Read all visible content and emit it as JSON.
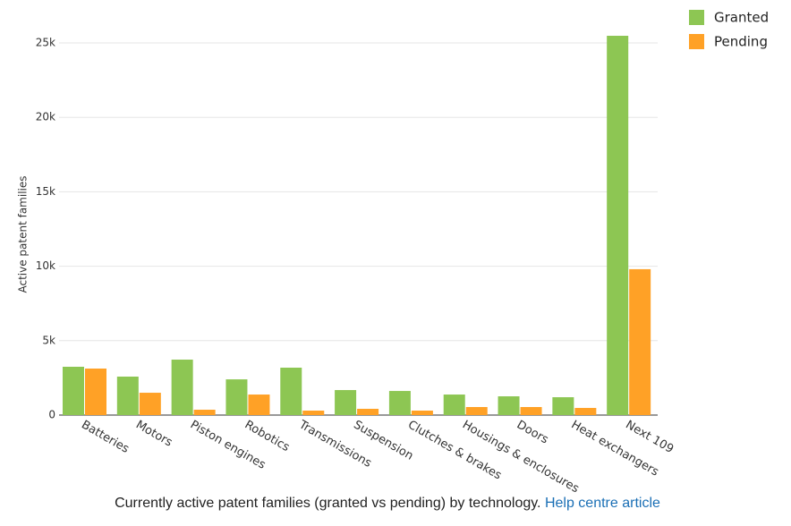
{
  "chart_data": {
    "type": "bar",
    "y_label": "Active patent families",
    "categories": [
      "Batteries",
      "Motors",
      "Piston engines",
      "Robotics",
      "Transmissions",
      "Suspension",
      "Clutches & brakes",
      "Housings & enclosures",
      "Doors",
      "Heat exchangers",
      "Next 109"
    ],
    "series": [
      {
        "name": "Granted",
        "color": "#8dc653",
        "values": [
          3245,
          2585,
          3725,
          2400,
          3185,
          1680,
          1620,
          1380,
          1260,
          1200,
          25480
        ]
      },
      {
        "name": "Pending",
        "color": "#ffa126",
        "values": [
          3125,
          1500,
          360,
          1380,
          300,
          420,
          300,
          540,
          540,
          480,
          9800
        ]
      }
    ],
    "ylim": [
      0,
      26000
    ],
    "yticks": [
      0,
      {
        "value": 5000,
        "label": "5k"
      },
      {
        "value": 10000,
        "label": "10k"
      },
      {
        "value": 15000,
        "label": "15k"
      },
      {
        "value": 20000,
        "label": "20k"
      },
      {
        "value": 25000,
        "label": "25k"
      }
    ],
    "grid": true,
    "legend": "top-right",
    "caption": "Currently active patent families (granted vs pending) by technology.",
    "link": "Help centre article"
  }
}
